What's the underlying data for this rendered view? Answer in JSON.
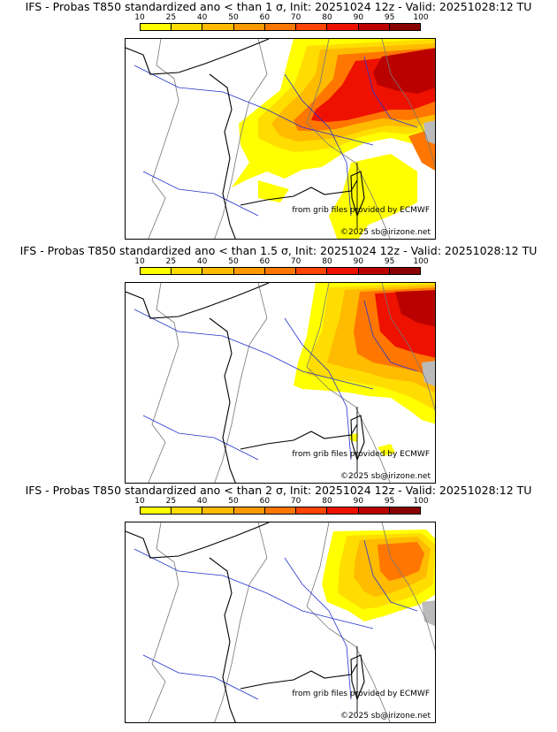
{
  "legend": {
    "ticks": [
      "10",
      "25",
      "40",
      "50",
      "60",
      "70",
      "80",
      "90",
      "95",
      "100"
    ],
    "colors": [
      "#ffff00",
      "#ffdd00",
      "#ffbb00",
      "#ff9900",
      "#ff7700",
      "#ff4400",
      "#ee1100",
      "#bb0000",
      "#880000"
    ]
  },
  "credits": {
    "source": "from grib files provided by ECMWF",
    "copyright": "©2025 sb@irizone.net"
  },
  "panels": [
    {
      "title": "IFS - Probas T850  standardized ano < than 1 σ, Init: 20251024 12z - Valid: 20251028:12 TU",
      "sigma": 1
    },
    {
      "title": "IFS - Probas T850  standardized ano < than 1.5 σ, Init: 20251024 12z - Valid: 20251028:12 TU",
      "sigma": 1.5
    },
    {
      "title": "IFS - Probas T850  standardized ano < than 2 σ, Init: 20251024 12z - Valid: 20251028:12 TU",
      "sigma": 2
    }
  ]
}
